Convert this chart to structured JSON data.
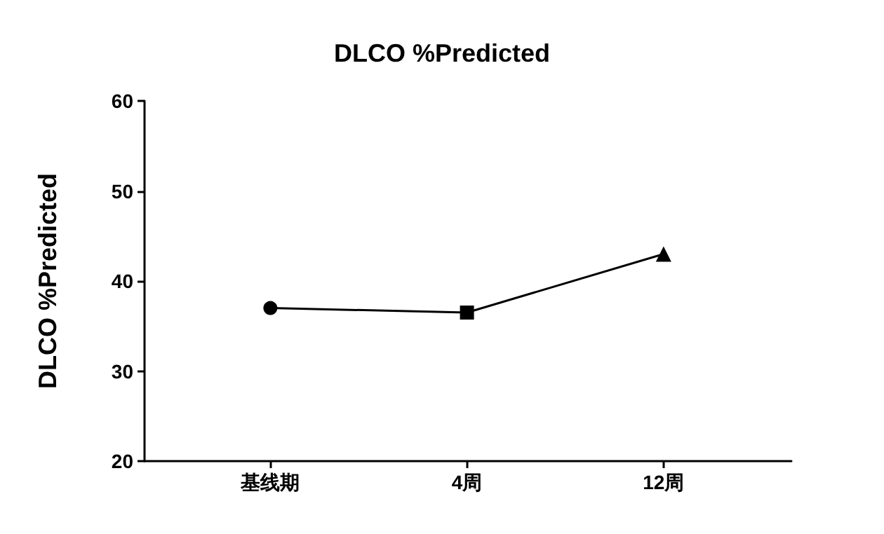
{
  "chart_data": {
    "type": "line",
    "title": "DLCO %Predicted",
    "ylabel": "DLCO %Predicted",
    "categories": [
      "基线期",
      "4周",
      "12周"
    ],
    "series": [
      {
        "color": "#000000",
        "values": [
          37,
          36.5,
          43
        ]
      }
    ],
    "marker": [
      "circle",
      "square",
      "triangle"
    ],
    "ylim": [
      20,
      60
    ],
    "yticks": [
      20,
      30,
      40,
      50,
      60
    ],
    "grid": false
  }
}
